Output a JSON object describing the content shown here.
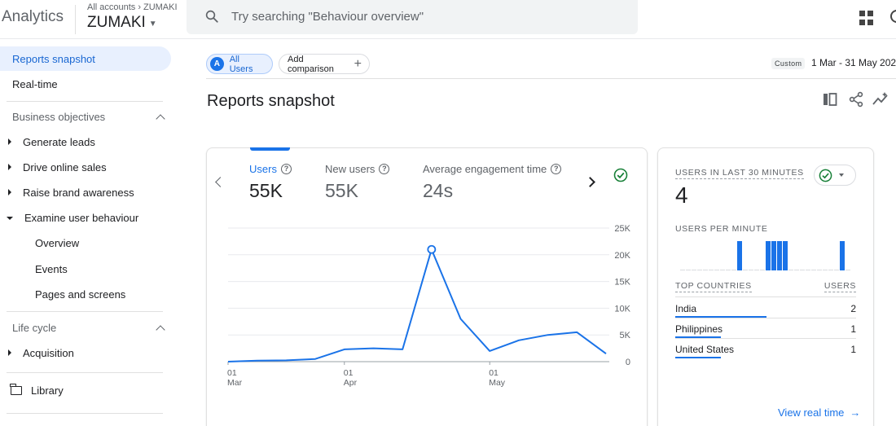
{
  "header": {
    "app_title": "Analytics",
    "account_breadcrumb": "All accounts",
    "account_crumb_target": "ZUMAKI",
    "account_name": "ZUMAKI",
    "search_placeholder": "Try searching \"Behaviour overview\""
  },
  "sidebar": {
    "items": [
      {
        "label": "Reports snapshot",
        "active": true
      },
      {
        "label": "Real-time"
      }
    ],
    "business_objectives": {
      "title": "Business objectives",
      "items": [
        {
          "label": "Generate leads",
          "expanded": false
        },
        {
          "label": "Drive online sales",
          "expanded": false
        },
        {
          "label": "Raise brand awareness",
          "expanded": false
        },
        {
          "label": "Examine user behaviour",
          "expanded": true
        }
      ],
      "sub_items": [
        "Overview",
        "Events",
        "Pages and screens"
      ]
    },
    "life_cycle": {
      "title": "Life cycle",
      "items": [
        {
          "label": "Acquisition",
          "expanded": false
        }
      ]
    },
    "library_label": "Library"
  },
  "toolbar": {
    "segment_letter": "A",
    "segment_label": "All Users",
    "add_comparison_label": "Add comparison",
    "date_badge": "Custom",
    "date_range": "1 Mar - 31 May 202"
  },
  "page_title": "Reports snapshot",
  "metrics": [
    {
      "label": "Users",
      "value": "55K",
      "active": true
    },
    {
      "label": "New users",
      "value": "55K",
      "active": false
    },
    {
      "label": "Average engagement time",
      "value": "24s",
      "active": false
    }
  ],
  "chart_data": {
    "type": "line",
    "series": [
      {
        "values": [
          0,
          200,
          250,
          500,
          2300,
          2500,
          2300,
          21000,
          8000,
          2000,
          4000,
          5000,
          5500,
          1500
        ]
      }
    ],
    "x_tick_labels": [
      {
        "day": "01",
        "month": "Mar",
        "index": 0
      },
      {
        "day": "01",
        "month": "Apr",
        "index": 4
      },
      {
        "day": "01",
        "month": "May",
        "index": 9
      }
    ],
    "y_ticks": [
      0,
      5000,
      10000,
      15000,
      20000,
      25000
    ],
    "y_tick_labels": [
      "0",
      "5K",
      "10K",
      "15K",
      "20K",
      "25K"
    ],
    "ylim": [
      0,
      25000
    ],
    "highlight_index": 7,
    "color": "#1a73e8",
    "grid": true
  },
  "realtime": {
    "users_label": "USERS IN LAST 30 MINUTES",
    "users_value": "4",
    "per_minute_label": "USERS PER MINUTE",
    "per_minute_bars": [
      0,
      0,
      0,
      0,
      0,
      0,
      0,
      0,
      0,
      0,
      1,
      0,
      0,
      0,
      0,
      1,
      1,
      1,
      1,
      0,
      0,
      0,
      0,
      0,
      0,
      0,
      0,
      0,
      1,
      0
    ],
    "top_countries_label": "TOP COUNTRIES",
    "users_col_label": "USERS",
    "countries": [
      {
        "name": "India",
        "value": "2",
        "share": 1.0
      },
      {
        "name": "Philippines",
        "value": "1",
        "share": 0.5
      },
      {
        "name": "United States",
        "value": "1",
        "share": 0.5
      }
    ],
    "view_link": "View real time"
  },
  "colors": {
    "accent": "#1a73e8",
    "check": "#188038"
  }
}
